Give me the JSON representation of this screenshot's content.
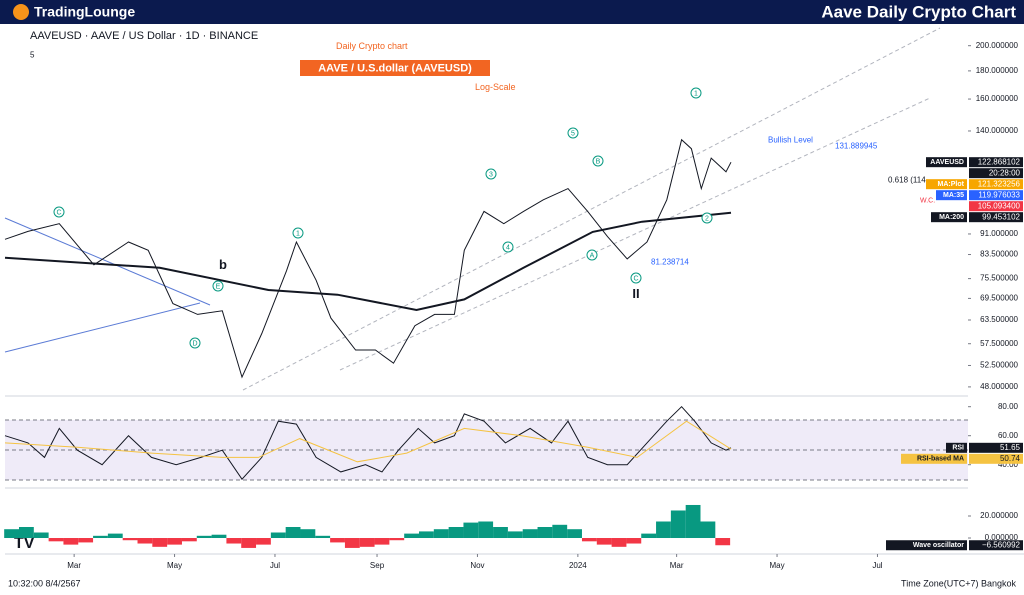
{
  "header": {
    "logo": "TradingLounge",
    "title": "Aave Daily Crypto Chart"
  },
  "footer": {
    "clock": "10:32:00 8/4/2567",
    "timezone": "Time Zone(UTC+7) Bangkok"
  },
  "chart_data": [
    {
      "type": "line",
      "title": "AAVEUSD · AAVE / US Dollar · 1D · BINANCE",
      "log_scale": true,
      "grid": false,
      "annotations": [
        "Daily Crypto chart",
        "AAVE / U.S.dollar (AAVEUSD)",
        "Log-Scale",
        "5",
        "C",
        "E",
        "D",
        "b",
        "1",
        "3",
        "4",
        "5",
        "B",
        "A",
        "C",
        "II",
        "1",
        "2",
        "Bullish Level",
        "131.889945",
        "0.618 (114",
        "W.C.",
        "81.238714"
      ],
      "xlim": [
        -14,
        571
      ],
      "xticks": [
        {
          "value": 28,
          "label": "Mar"
        },
        {
          "value": 89,
          "label": "May"
        },
        {
          "value": 150,
          "label": "Jul"
        },
        {
          "value": 212,
          "label": "Sep"
        },
        {
          "value": 273,
          "label": "Nov"
        },
        {
          "value": 334,
          "label": "2024"
        },
        {
          "value": 394,
          "label": "Mar"
        },
        {
          "value": 455,
          "label": "May"
        },
        {
          "value": 516,
          "label": "Jul"
        }
      ],
      "ylim": [
        46.4,
        219
      ],
      "yticks": [
        {
          "value": 200,
          "label": "200.000000"
        },
        {
          "value": 180,
          "label": "180.000000"
        },
        {
          "value": 160,
          "label": "160.000000"
        },
        {
          "value": 140,
          "label": "140.000000"
        },
        {
          "value": 91,
          "label": "91.000000"
        },
        {
          "value": 83.5,
          "label": "83.500000"
        },
        {
          "value": 75.5,
          "label": "75.500000"
        },
        {
          "value": 69.5,
          "label": "69.500000"
        },
        {
          "value": 63.5,
          "label": "63.500000"
        },
        {
          "value": 57.5,
          "label": "57.500000"
        },
        {
          "value": 52.5,
          "label": "52.500000"
        },
        {
          "value": 48,
          "label": "48.000000"
        }
      ],
      "series": [
        {
          "name": "AAVEUSD",
          "color": "#131722",
          "x": [
            -14,
            0,
            19,
            40,
            61,
            73,
            88,
            103,
            118,
            130,
            142,
            157,
            163,
            175,
            184,
            199,
            211,
            222,
            235,
            247,
            259,
            265,
            277,
            289,
            301,
            313,
            328,
            340,
            352,
            364,
            376,
            388,
            397,
            403,
            409,
            415,
            424,
            427
          ],
          "values": [
            89,
            92,
            95,
            80,
            88,
            85,
            68,
            65,
            66,
            50,
            60,
            78,
            88,
            75,
            64,
            56,
            56,
            53,
            62,
            65,
            65,
            85,
            100,
            95,
            100,
            105,
            110,
            100,
            90,
            82,
            88,
            105,
            135,
            130,
            110,
            125,
            118,
            122.868102
          ]
        },
        {
          "name": "MA:200",
          "color": "#131722",
          "x": [
            -14,
            80,
            146,
            188,
            236,
            265,
            301,
            343,
            373,
            427
          ],
          "values": [
            82.4,
            79,
            72,
            70.6,
            66.2,
            69.2,
            79,
            91.8,
            95.8,
            99.453102
          ]
        }
      ],
      "countdown": "20:28:00",
      "labels": [
        {
          "name": "AAVEUSD",
          "value": 122.868102,
          "label": "122.868102",
          "color": "#131722"
        },
        {
          "name": "MA:Plot",
          "value": 121.323256,
          "label": "121.323256",
          "color": "#f7a600"
        },
        {
          "name": "MA:35",
          "value": 119.976033,
          "label": "119.976033",
          "color": "#2962ff"
        },
        {
          "value": 105.0934,
          "label": "105.093400",
          "color": "#f23645"
        },
        {
          "name": "MA:200",
          "value": 99.453102,
          "label": "99.453102",
          "color": "#131722"
        }
      ]
    },
    {
      "type": "line",
      "ylim": [
        26,
        86
      ],
      "yticks": [
        {
          "value": 80,
          "label": "80.00"
        },
        {
          "value": 60,
          "label": "60.00"
        },
        {
          "value": 40,
          "label": "40.00"
        }
      ],
      "series": [
        {
          "name": "RSI",
          "color": "#131722",
          "x": [
            -14,
            0,
            10,
            19,
            30,
            45,
            61,
            75,
            90,
            105,
            118,
            130,
            142,
            152,
            163,
            175,
            190,
            205,
            215,
            225,
            237,
            247,
            259,
            265,
            277,
            290,
            305,
            318,
            328,
            340,
            352,
            364,
            376,
            388,
            397,
            405,
            415,
            424,
            427
          ],
          "values": [
            60,
            55,
            45,
            65,
            50,
            40,
            60,
            45,
            40,
            45,
            50,
            30,
            45,
            70,
            68,
            45,
            35,
            40,
            35,
            50,
            65,
            55,
            60,
            75,
            70,
            55,
            65,
            55,
            70,
            45,
            40,
            40,
            55,
            70,
            80,
            70,
            55,
            50,
            51.65
          ]
        },
        {
          "name": "RSI-based MA",
          "color": "#f5c342",
          "x": [
            -14,
            30,
            75,
            118,
            140,
            165,
            200,
            230,
            265,
            300,
            340,
            370,
            400,
            427
          ],
          "values": [
            55,
            52,
            48,
            45,
            45,
            58,
            42,
            48,
            65,
            60,
            52,
            45,
            70,
            50.74
          ]
        }
      ],
      "labels": [
        {
          "name": "RSI",
          "value": 51.65,
          "label": "51.65",
          "color": "#131722"
        },
        {
          "name": "RSI-based MA",
          "value": 50.74,
          "label": "50.74",
          "color": "#f5c342"
        }
      ]
    },
    {
      "type": "bar",
      "ylim": [
        -12.7,
        43.6
      ],
      "yticks": [
        {
          "value": 20,
          "label": "20.000000"
        },
        {
          "value": 0,
          "label": "0.000000"
        }
      ],
      "colors": {
        "positive": "#089981",
        "negative": "#f23645"
      },
      "x": [
        -10,
        -1,
        8,
        17,
        26,
        35,
        44,
        53,
        62,
        71,
        80,
        89,
        98,
        107,
        116,
        125,
        134,
        143,
        152,
        161,
        170,
        179,
        188,
        197,
        206,
        215,
        224,
        233,
        242,
        251,
        260,
        269,
        278,
        287,
        296,
        305,
        314,
        323,
        332,
        341,
        350,
        359,
        368,
        377,
        386,
        395,
        404,
        413,
        422
      ],
      "values": [
        8,
        10,
        5,
        -3,
        -6,
        -4,
        2,
        4,
        -2,
        -5,
        -8,
        -6,
        -3,
        2,
        3,
        -5,
        -9,
        -6,
        5,
        10,
        8,
        2,
        -4,
        -9,
        -8,
        -6,
        -2,
        4,
        6,
        8,
        10,
        14,
        15,
        10,
        6,
        8,
        10,
        12,
        8,
        -3,
        -6,
        -8,
        -5,
        4,
        15,
        25,
        30,
        15,
        -6.560992
      ],
      "labels": [
        {
          "name": "Wave oscillator",
          "value": -6.560992,
          "label": "−6.560992",
          "color": "#131722"
        }
      ]
    }
  ]
}
